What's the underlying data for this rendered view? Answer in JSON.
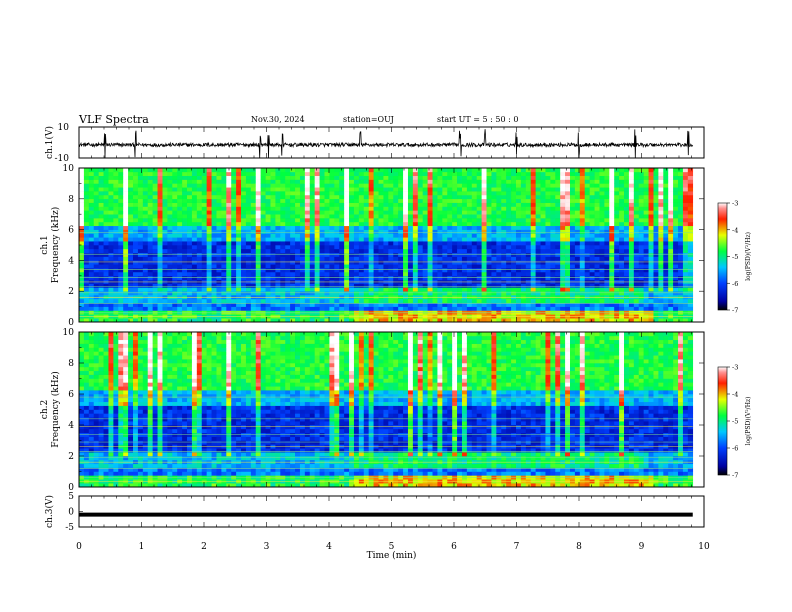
{
  "header": {
    "title": "VLF Spectra",
    "date": "Nov.30, 2024",
    "station": "station=OUJ",
    "start": "start UT = 5 : 50 : 0"
  },
  "chart_data": [
    {
      "type": "line",
      "panel": "waveform-ch1",
      "ylabel": "ch.1(V)",
      "ylim": [
        -10,
        10
      ],
      "yticks": [
        "10",
        "-10"
      ],
      "spikes_min": [
        0.42,
        0.9,
        2.9,
        3.03,
        3.25,
        4.5,
        6.1,
        6.5,
        7.0,
        8.0,
        8.9,
        9.75
      ]
    },
    {
      "type": "heatmap",
      "panel": "spectrogram-ch1",
      "ylabel": "ch.1 Frequency (kHz)",
      "ylim": [
        0,
        10
      ],
      "yticks": [
        "0",
        "2",
        "4",
        "6",
        "8",
        "10"
      ],
      "colorbar": {
        "label": "log(PSD)(V²/Hz)",
        "range": [
          -7,
          -3
        ],
        "ticks": [
          "-3",
          "-4",
          "-5",
          "-6",
          "-7"
        ]
      }
    },
    {
      "type": "heatmap",
      "panel": "spectrogram-ch2",
      "ylabel": "ch.2 Frequency (kHz)",
      "ylim": [
        0,
        10
      ],
      "yticks": [
        "0",
        "2",
        "4",
        "6",
        "8",
        "10"
      ],
      "colorbar": {
        "label": "log(PSD)(V²/Hz)",
        "range": [
          -7,
          -3
        ],
        "ticks": [
          "-3",
          "-4",
          "-5",
          "-6",
          "-7"
        ]
      }
    },
    {
      "type": "line",
      "panel": "waveform-ch3",
      "ylabel": "ch.3(V)",
      "ylim": [
        -5,
        5
      ],
      "yticks": [
        "5",
        "0",
        "-5"
      ],
      "level_v": -1
    }
  ],
  "xaxis": {
    "label": "Time (min)",
    "xlim": [
      0,
      10
    ],
    "ticks": [
      "0",
      "1",
      "2",
      "3",
      "4",
      "5",
      "6",
      "7",
      "8",
      "9",
      "10"
    ]
  }
}
